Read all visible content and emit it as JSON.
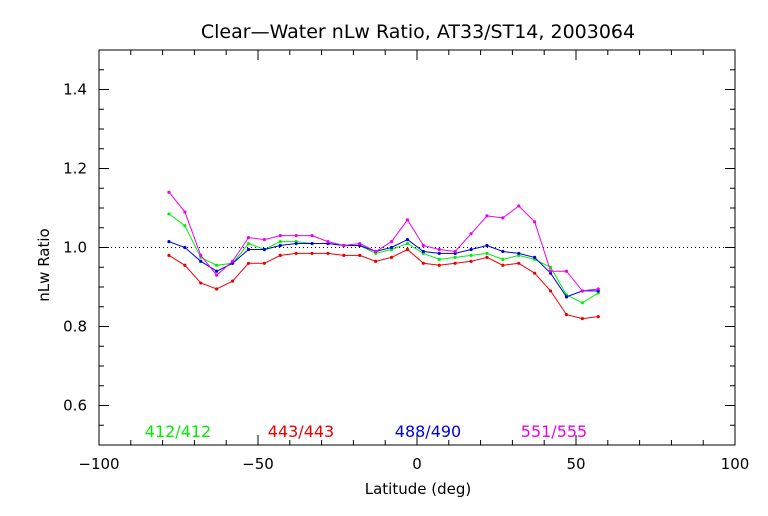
{
  "chart_data": {
    "type": "line",
    "title": "Clear—Water nLw Ratio, AT33/ST14, 2003064",
    "xlabel": "Latitude (deg)",
    "ylabel": "nLw Ratio",
    "xlim": [
      -100,
      100
    ],
    "ylim": [
      0.5,
      1.5
    ],
    "xticks": [
      -100,
      -50,
      0,
      50,
      100
    ],
    "yticks": [
      0.6,
      0.8,
      1.0,
      1.2,
      1.4
    ],
    "xtick_labels": [
      "−100",
      "−50",
      "0",
      "50",
      "100"
    ],
    "ytick_labels": [
      "0.6",
      "0.8",
      "1.0",
      "1.2",
      "1.4"
    ],
    "reference_line": 1.0,
    "grid": false,
    "x": [
      -78,
      -73,
      -68,
      -63,
      -58,
      -53,
      -48,
      -43,
      -38,
      -33,
      -28,
      -23,
      -18,
      -13,
      -8,
      -3,
      2,
      7,
      12,
      17,
      22,
      27,
      32,
      37,
      42,
      47,
      52,
      57
    ],
    "series": [
      {
        "name": "412/412",
        "color": "#00ee00",
        "values": [
          1.085,
          1.055,
          0.975,
          0.955,
          0.96,
          1.01,
          0.995,
          1.015,
          1.015,
          1.01,
          1.01,
          1.005,
          1.005,
          0.985,
          0.995,
          1.01,
          0.985,
          0.97,
          0.975,
          0.98,
          0.985,
          0.97,
          0.98,
          0.97,
          0.95,
          0.88,
          0.86,
          0.885
        ]
      },
      {
        "name": "443/443",
        "color": "#ee0000",
        "values": [
          0.98,
          0.955,
          0.91,
          0.895,
          0.915,
          0.96,
          0.96,
          0.98,
          0.985,
          0.985,
          0.985,
          0.98,
          0.98,
          0.965,
          0.975,
          0.995,
          0.96,
          0.955,
          0.96,
          0.965,
          0.975,
          0.955,
          0.96,
          0.935,
          0.89,
          0.83,
          0.82,
          0.825
        ]
      },
      {
        "name": "488/490",
        "color": "#0000dd",
        "values": [
          1.015,
          1.0,
          0.965,
          0.94,
          0.96,
          0.995,
          0.995,
          1.005,
          1.01,
          1.01,
          1.01,
          1.005,
          1.005,
          0.99,
          1.0,
          1.02,
          0.99,
          0.985,
          0.985,
          0.995,
          1.005,
          0.99,
          0.985,
          0.975,
          0.935,
          0.875,
          0.89,
          0.89
        ]
      },
      {
        "name": "551/555",
        "color": "#ee00ee",
        "values": [
          1.14,
          1.09,
          0.98,
          0.93,
          0.965,
          1.025,
          1.02,
          1.03,
          1.03,
          1.03,
          1.015,
          1.005,
          1.01,
          0.99,
          1.015,
          1.07,
          1.005,
          0.995,
          0.99,
          1.035,
          1.08,
          1.075,
          1.105,
          1.065,
          0.94,
          0.94,
          0.89,
          0.895
        ]
      }
    ],
    "legend": {
      "placement": "bottom-inside",
      "entries": [
        {
          "label": "412/412",
          "color": "#00ee00"
        },
        {
          "label": "443/443",
          "color": "#ee0000"
        },
        {
          "label": "488/490",
          "color": "#0000dd"
        },
        {
          "label": "551/555",
          "color": "#ee00ee"
        }
      ]
    }
  }
}
